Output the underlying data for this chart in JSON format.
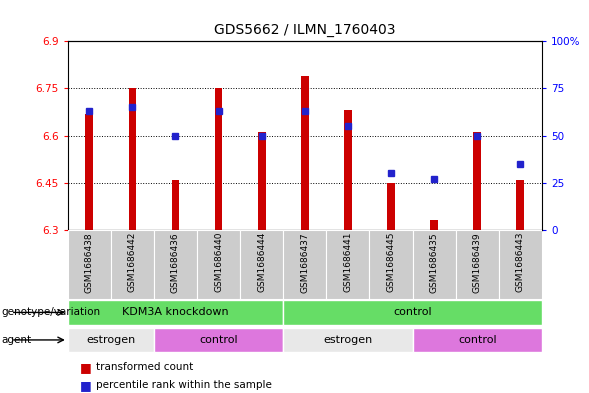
{
  "title": "GDS5662 / ILMN_1760403",
  "samples": [
    "GSM1686438",
    "GSM1686442",
    "GSM1686436",
    "GSM1686440",
    "GSM1686444",
    "GSM1686437",
    "GSM1686441",
    "GSM1686445",
    "GSM1686435",
    "GSM1686439",
    "GSM1686443"
  ],
  "red_values": [
    6.67,
    6.75,
    6.46,
    6.75,
    6.61,
    6.79,
    6.68,
    6.45,
    6.33,
    6.61,
    6.46
  ],
  "blue_percentiles": [
    63,
    65,
    50,
    63,
    50,
    63,
    55,
    30,
    27,
    50,
    35
  ],
  "y_min": 6.3,
  "y_max": 6.9,
  "y_ticks": [
    6.3,
    6.45,
    6.6,
    6.75,
    6.9
  ],
  "y_tick_labels": [
    "6.3",
    "6.45",
    "6.6",
    "6.75",
    "6.9"
  ],
  "right_y_ticks": [
    0,
    25,
    50,
    75,
    100
  ],
  "right_y_labels": [
    "0",
    "25",
    "50",
    "75",
    "100%"
  ],
  "genotype_groups": [
    {
      "label": "KDM3A knockdown",
      "start": 0,
      "end": 5
    },
    {
      "label": "control",
      "start": 5,
      "end": 11
    }
  ],
  "agent_groups": [
    {
      "label": "estrogen",
      "start": 0,
      "end": 2
    },
    {
      "label": "control",
      "start": 2,
      "end": 5
    },
    {
      "label": "estrogen",
      "start": 5,
      "end": 8
    },
    {
      "label": "control",
      "start": 8,
      "end": 11
    }
  ],
  "bar_color": "#cc0000",
  "dot_color": "#2222cc",
  "bar_bottom": 6.3,
  "genotype_color": "#66dd66",
  "agent_estrogen_color": "#e8e8e8",
  "agent_control_color": "#dd77dd",
  "title_fontsize": 10,
  "tick_label_fontsize": 7.5,
  "sample_label_fontsize": 6.5,
  "row_label_fontsize": 7.5,
  "legend_fontsize": 7.5
}
